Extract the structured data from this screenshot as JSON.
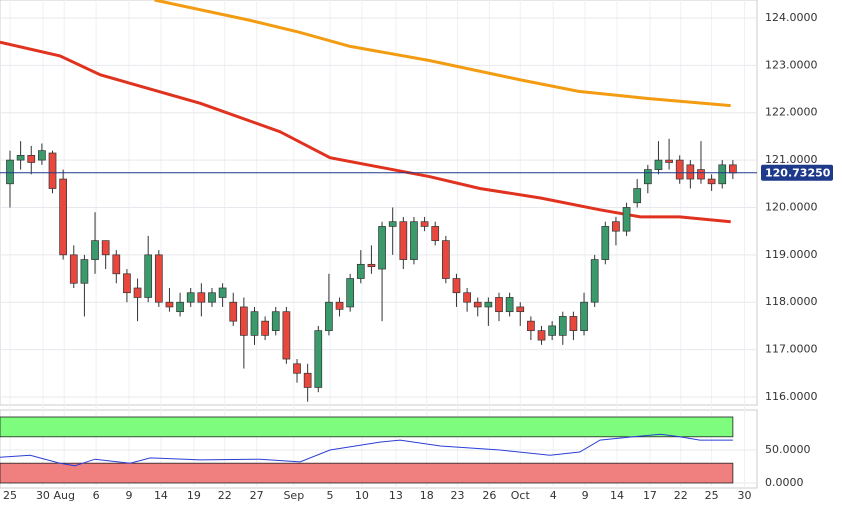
{
  "chart_data": {
    "type": "candlestick",
    "xlim": [
      -0.94,
      70.27
    ],
    "xticks": [
      {
        "value": 0,
        "label": "25"
      },
      {
        "value": 3.1,
        "label": "30"
      },
      {
        "value": 5.1,
        "label": "Aug"
      },
      {
        "value": 8.1,
        "label": "6"
      },
      {
        "value": 11.2,
        "label": "9"
      },
      {
        "value": 14.2,
        "label": "14"
      },
      {
        "value": 17.3,
        "label": "19"
      },
      {
        "value": 20.2,
        "label": "22"
      },
      {
        "value": 23.2,
        "label": "27"
      },
      {
        "value": 26.7,
        "label": "Sep"
      },
      {
        "value": 30.1,
        "label": "5"
      },
      {
        "value": 33.1,
        "label": "10"
      },
      {
        "value": 36.3,
        "label": "13"
      },
      {
        "value": 39.2,
        "label": "18"
      },
      {
        "value": 42.1,
        "label": "23"
      },
      {
        "value": 45.1,
        "label": "26"
      },
      {
        "value": 48,
        "label": "Oct"
      },
      {
        "value": 51.1,
        "label": "4"
      },
      {
        "value": 54.1,
        "label": "9"
      },
      {
        "value": 57.1,
        "label": "14"
      },
      {
        "value": 60.2,
        "label": "17"
      },
      {
        "value": 63.1,
        "label": "22"
      },
      {
        "value": 66,
        "label": "25"
      },
      {
        "value": 69.1,
        "label": "30"
      }
    ],
    "ylim": [
      115.83,
      124.38
    ],
    "yticks": [
      {
        "value": 116,
        "label": "116.0000"
      },
      {
        "value": 117,
        "label": "117.0000"
      },
      {
        "value": 118,
        "label": "118.0000"
      },
      {
        "value": 119,
        "label": "119.0000"
      },
      {
        "value": 120,
        "label": "120.0000"
      },
      {
        "value": 121,
        "label": "121.0000"
      },
      {
        "value": 122,
        "label": "122.0000"
      },
      {
        "value": 123,
        "label": "123.0000"
      },
      {
        "value": 124,
        "label": "124.0000"
      }
    ],
    "up_color": "#3a9a6b",
    "down_color": "#e8473e",
    "open": [
      120.5,
      121.0,
      121.1,
      121.0,
      121.15,
      120.6,
      119.0,
      118.4,
      118.9,
      119.3,
      119.0,
      118.6,
      118.3,
      118.1,
      119.0,
      118.0,
      117.8,
      118.0,
      118.2,
      118.0,
      118.1,
      118.0,
      117.9,
      117.3,
      117.6,
      117.4,
      117.8,
      116.7,
      116.5,
      116.2,
      117.4,
      118.0,
      117.9,
      118.5,
      118.8,
      118.7,
      119.6,
      119.7,
      118.9,
      119.7,
      119.6,
      119.3,
      118.5,
      118.2,
      118.0,
      117.9,
      118.1,
      117.8,
      117.9,
      117.6,
      117.4,
      117.3,
      117.3,
      117.7,
      117.4,
      118.0,
      118.9,
      119.7,
      119.5,
      120.1,
      120.5,
      120.8,
      121.0,
      121.0,
      120.9,
      120.8,
      120.6,
      120.5,
      120.9
    ],
    "high": [
      121.2,
      121.4,
      121.3,
      121.35,
      121.2,
      120.8,
      119.2,
      119.0,
      119.9,
      119.3,
      119.1,
      118.7,
      118.5,
      119.4,
      119.1,
      118.3,
      118.2,
      118.3,
      118.4,
      118.3,
      118.4,
      118.2,
      118.1,
      117.9,
      117.7,
      117.9,
      117.9,
      116.8,
      116.7,
      117.5,
      118.6,
      118.1,
      118.6,
      119.1,
      119.2,
      119.7,
      120.0,
      119.8,
      119.8,
      119.8,
      119.7,
      119.4,
      118.6,
      118.3,
      118.1,
      118.1,
      118.2,
      118.2,
      118.0,
      117.7,
      117.5,
      117.6,
      117.8,
      117.8,
      118.2,
      119.0,
      119.7,
      119.8,
      120.1,
      120.6,
      120.9,
      121.4,
      121.45,
      121.1,
      121.0,
      121.4,
      120.7,
      121.0,
      121.0
    ],
    "low": [
      120.0,
      120.8,
      120.7,
      120.9,
      120.3,
      118.9,
      118.3,
      117.7,
      118.6,
      118.7,
      118.4,
      118.0,
      117.6,
      118.0,
      117.9,
      117.8,
      117.7,
      117.9,
      117.7,
      117.9,
      117.9,
      117.5,
      116.6,
      117.1,
      117.2,
      117.3,
      116.7,
      116.3,
      115.9,
      116.1,
      117.3,
      117.7,
      117.8,
      118.4,
      118.6,
      117.6,
      119.0,
      118.7,
      118.8,
      119.5,
      119.2,
      118.4,
      117.9,
      117.8,
      117.7,
      117.5,
      117.6,
      117.7,
      117.5,
      117.2,
      117.1,
      117.2,
      117.1,
      117.2,
      117.3,
      117.9,
      118.8,
      119.2,
      119.4,
      120.0,
      120.3,
      120.7,
      120.8,
      120.5,
      120.4,
      120.5,
      120.35,
      120.4,
      120.6
    ],
    "close": [
      121.0,
      121.1,
      120.95,
      121.2,
      120.4,
      119.0,
      118.4,
      118.9,
      119.3,
      119.0,
      118.6,
      118.2,
      118.1,
      119.0,
      118.0,
      117.9,
      118.0,
      118.2,
      118.0,
      118.2,
      118.3,
      117.6,
      117.3,
      117.8,
      117.3,
      117.8,
      116.8,
      116.5,
      116.2,
      117.4,
      118.0,
      117.85,
      118.5,
      118.8,
      118.75,
      119.6,
      119.7,
      118.9,
      119.7,
      119.6,
      119.3,
      118.5,
      118.2,
      118.0,
      117.9,
      118.0,
      117.8,
      118.1,
      117.8,
      117.4,
      117.2,
      117.5,
      117.7,
      117.4,
      118.0,
      118.9,
      119.6,
      119.5,
      120.0,
      120.4,
      120.8,
      121.0,
      120.95,
      120.6,
      120.6,
      120.6,
      120.5,
      120.9,
      120.73
    ],
    "lines": [
      {
        "color": "#f39c12",
        "x": [
          13.6,
          22.6,
          27.2,
          32,
          39.5,
          47.9,
          53.5,
          60,
          67.8
        ],
        "values": [
          124.38,
          123.95,
          123.7,
          123.4,
          123.1,
          122.7,
          122.45,
          122.3,
          122.15
        ]
      },
      {
        "color": "#e0321e",
        "x": [
          -0.94,
          4.7,
          8.5,
          17.9,
          25.4,
          30.1,
          34.8,
          39.5,
          44.2,
          49.9,
          55.5,
          59.3,
          63,
          67.8
        ],
        "values": [
          123.49,
          123.2,
          122.8,
          122.2,
          121.6,
          121.05,
          120.85,
          120.65,
          120.4,
          120.2,
          119.95,
          119.8,
          119.8,
          119.7
        ]
      }
    ],
    "last_price": {
      "value": 120.7325,
      "label": "120.73250"
    },
    "oscillator": {
      "color": "#2b3fd6",
      "ylim": [
        -7.6,
        110.6
      ],
      "yticks": [
        {
          "value": 0,
          "label": "0.0000"
        },
        {
          "value": 50,
          "label": "50.0000"
        }
      ],
      "bands": [
        {
          "range": [
            70,
            100
          ],
          "color": "#7dfc7d"
        },
        {
          "range": [
            0,
            30
          ],
          "color": "#f08080"
        }
      ],
      "band_end": 68,
      "x": [
        -0.94,
        1.9,
        4.7,
        6.1,
        8,
        11.3,
        13.2,
        17.9,
        23.5,
        27.3,
        30.1,
        34.8,
        36.7,
        40.5,
        46.1,
        50.8,
        53.6,
        55.5,
        59.3,
        61.2,
        63,
        64.9,
        68
      ],
      "values": [
        39,
        42,
        30,
        26,
        36,
        30,
        38,
        35,
        36,
        32,
        50,
        62,
        65,
        56,
        50,
        42,
        47,
        65,
        71,
        74,
        70,
        65,
        65
      ]
    }
  }
}
